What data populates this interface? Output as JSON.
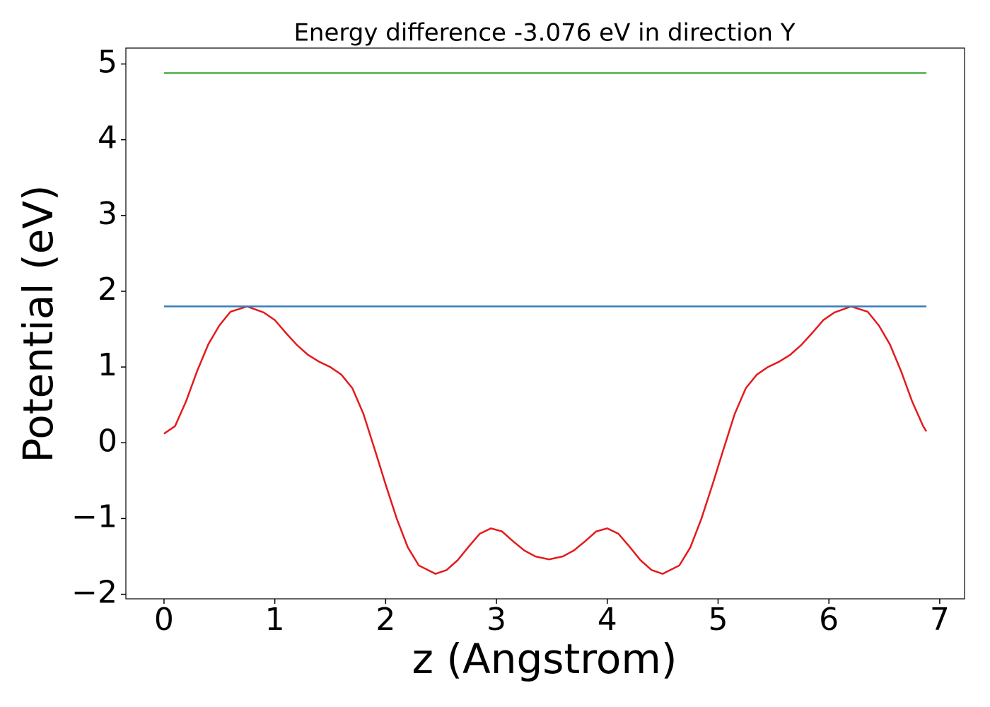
{
  "chart_data": {
    "type": "line",
    "title": "Energy difference -3.076 eV in direction Y",
    "x_label": "z (Angstrom)",
    "y_label": "Potential (eV)",
    "xlim": [
      -0.344,
      7.224
    ],
    "ylim": [
      -2.06,
      5.21
    ],
    "xticks": [
      0,
      1,
      2,
      3,
      4,
      5,
      6,
      7
    ],
    "yticks": [
      {
        "value": -2,
        "label": "−2"
      },
      {
        "value": -1,
        "label": "−1"
      },
      0,
      1,
      2,
      3,
      4,
      5
    ],
    "grid": false,
    "series": [
      {
        "color": "#e41a1c",
        "x": [
          0,
          0.1,
          0.2,
          0.3,
          0.4,
          0.5,
          0.6,
          0.75,
          0.9,
          1.0,
          1.1,
          1.2,
          1.3,
          1.4,
          1.5,
          1.6,
          1.7,
          1.8,
          1.9,
          2.0,
          2.1,
          2.2,
          2.3,
          2.45,
          2.55,
          2.65,
          2.75,
          2.85,
          2.95,
          3.05,
          3.15,
          3.25,
          3.35,
          3.475,
          3.6,
          3.7,
          3.8,
          3.9,
          4.0,
          4.1,
          4.2,
          4.3,
          4.4,
          4.5,
          4.65,
          4.75,
          4.85,
          4.95,
          5.05,
          5.15,
          5.25,
          5.35,
          5.45,
          5.55,
          5.65,
          5.75,
          5.85,
          5.95,
          6.05,
          6.2,
          6.35,
          6.45,
          6.55,
          6.65,
          6.75,
          6.85,
          6.88
        ],
        "values": [
          0.12,
          0.22,
          0.55,
          0.95,
          1.3,
          1.55,
          1.73,
          1.8,
          1.72,
          1.62,
          1.45,
          1.29,
          1.16,
          1.07,
          1.0,
          0.9,
          0.72,
          0.38,
          -0.08,
          -0.55,
          -1.0,
          -1.38,
          -1.62,
          -1.73,
          -1.68,
          -1.55,
          -1.37,
          -1.2,
          -1.13,
          -1.17,
          -1.3,
          -1.42,
          -1.5,
          -1.54,
          -1.5,
          -1.42,
          -1.3,
          -1.17,
          -1.13,
          -1.2,
          -1.37,
          -1.55,
          -1.68,
          -1.73,
          -1.62,
          -1.38,
          -1.0,
          -0.55,
          -0.08,
          0.38,
          0.72,
          0.9,
          1.0,
          1.07,
          1.16,
          1.29,
          1.45,
          1.62,
          1.72,
          1.8,
          1.73,
          1.55,
          1.3,
          0.95,
          0.55,
          0.22,
          0.15
        ]
      },
      {
        "color": "#377eb8",
        "x": [
          0,
          6.88
        ],
        "values": [
          1.8,
          1.8
        ]
      },
      {
        "color": "#4daf4a",
        "x": [
          0,
          6.88
        ],
        "values": [
          4.88,
          4.88
        ]
      }
    ]
  }
}
